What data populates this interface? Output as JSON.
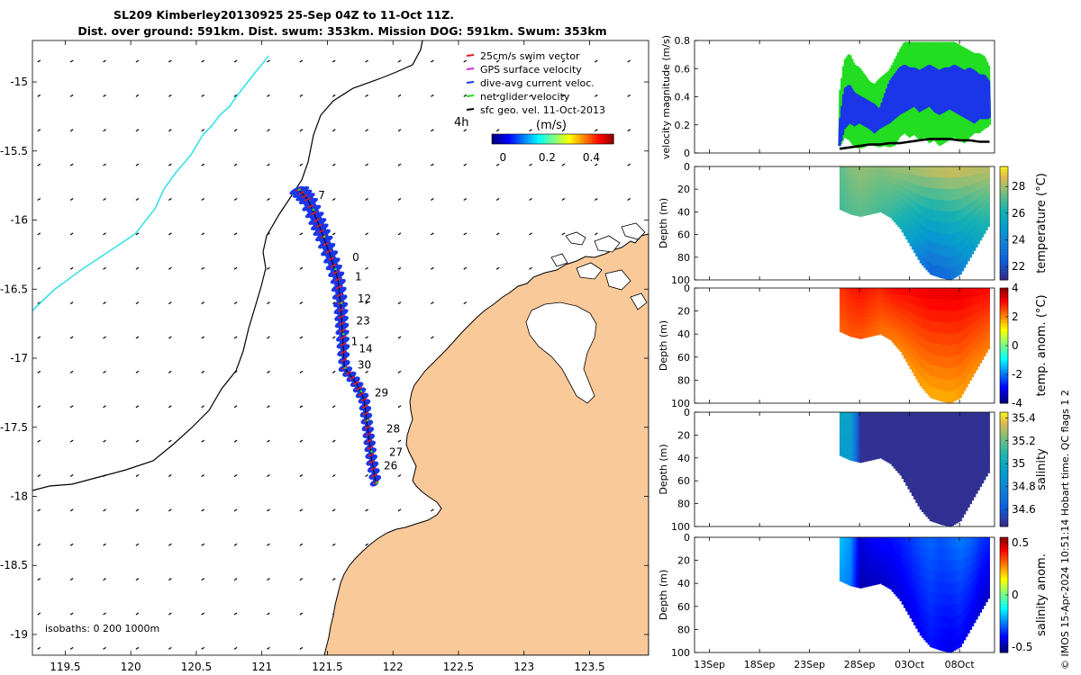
{
  "title": {
    "line1": "SL209 Kimberley20130925 25-Sep 04Z to 11-Oct 11Z.",
    "line2": "Dist. over ground: 591km. Dist. swum: 353km. Mission DOG: 591km. Swum: 353km"
  },
  "footnote": "© IMOS 15-Apr-2024 10:51:14 Hobart time. QC flags 1  2",
  "colors": {
    "land": "#f9c99a",
    "track_blue": "#1a36e8",
    "swim_red": "#e41a1c",
    "net_green": "#22dd22",
    "coast": "#000000",
    "isobath_cyan": "#38e0e8"
  },
  "chart_data": [
    {
      "type": "map",
      "name": "glider track map",
      "xlim": [
        119.25,
        123.95
      ],
      "ylim": [
        -19.15,
        -14.7
      ],
      "xticks": [
        "119.5",
        "120",
        "120.5",
        "121",
        "121.5",
        "122",
        "122.5",
        "123",
        "123.5"
      ],
      "xtick_values": [
        119.5,
        120,
        120.5,
        121,
        121.5,
        122,
        122.5,
        123,
        123.5
      ],
      "yticks": [
        "-15",
        "-15.5",
        "-16",
        "-16.5",
        "-17",
        "-17.5",
        "-18",
        "-18.5",
        "-19"
      ],
      "ytick_values": [
        -15,
        -15.5,
        -16,
        -16.5,
        -17,
        -17.5,
        -18,
        -18.5,
        -19
      ],
      "legend": {
        "items": [
          {
            "label": "25cm/s swim vector",
            "color": "#e41a1c"
          },
          {
            "label": "GPS surface velocity",
            "color": "#cc33cc"
          },
          {
            "label": "dive-avg current veloc.",
            "color": "#1a36e8"
          },
          {
            "label": "net glider velocity",
            "color": "#22dd22"
          },
          {
            "label": "sfc geo. vel. 11-Oct-2013",
            "color": "#000000"
          }
        ],
        "note": "4h"
      },
      "colorbar": {
        "label": "(m/s)",
        "ticks": [
          "0",
          "0.2",
          "0.4"
        ],
        "tick_values": [
          0,
          0.2,
          0.4
        ],
        "range": [
          -0.05,
          0.5
        ]
      },
      "isobaths_label": "isobaths: 0   200  1000m",
      "track": [
        [
          121.28,
          -15.78
        ],
        [
          121.35,
          -15.85
        ],
        [
          121.42,
          -16.0
        ],
        [
          121.47,
          -16.12
        ],
        [
          121.53,
          -16.28
        ],
        [
          121.58,
          -16.43
        ],
        [
          121.6,
          -16.6
        ],
        [
          121.61,
          -16.75
        ],
        [
          121.62,
          -16.9
        ],
        [
          121.63,
          -17.07
        ],
        [
          121.72,
          -17.18
        ],
        [
          121.78,
          -17.3
        ],
        [
          121.8,
          -17.45
        ],
        [
          121.82,
          -17.6
        ],
        [
          121.84,
          -17.75
        ],
        [
          121.87,
          -17.9
        ]
      ],
      "day_labels": [
        {
          "text": "7",
          "lon": 121.43,
          "lat": -15.82
        },
        {
          "text": "0",
          "lon": 121.69,
          "lat": -16.27
        },
        {
          "text": "1",
          "lon": 121.71,
          "lat": -16.41
        },
        {
          "text": "12",
          "lon": 121.73,
          "lat": -16.57
        },
        {
          "text": "23",
          "lon": 121.72,
          "lat": -16.73
        },
        {
          "text": "1",
          "lon": 121.68,
          "lat": -16.88
        },
        {
          "text": "14",
          "lon": 121.74,
          "lat": -16.93
        },
        {
          "text": "30",
          "lon": 121.73,
          "lat": -17.05
        },
        {
          "text": "29",
          "lon": 121.86,
          "lat": -17.25
        },
        {
          "text": "28",
          "lon": 121.95,
          "lat": -17.51
        },
        {
          "text": "27",
          "lon": 121.97,
          "lat": -17.68
        },
        {
          "text": "26",
          "lon": 121.93,
          "lat": -17.78
        }
      ]
    },
    {
      "type": "line",
      "name": "velocity time series",
      "ylabel": "velocity magnitude (m/s)",
      "ylim": [
        0,
        0.8
      ],
      "yticks": [
        "0",
        "0.2",
        "0.4",
        "0.6",
        "0.8"
      ],
      "ytick_values": [
        0,
        0.2,
        0.4,
        0.6,
        0.8
      ],
      "xlim": [
        11.5,
        41.5
      ],
      "xticks": [
        "13Sep",
        "18Sep",
        "23Sep",
        "28Sep",
        "03Oct",
        "08Oct"
      ],
      "xtick_values": [
        13,
        18,
        23,
        28,
        33,
        38
      ],
      "series": [
        {
          "name": "net glider velocity",
          "color": "#22dd22",
          "x": [
            26,
            26.5,
            27,
            27.5,
            28,
            28.5,
            29,
            29.5,
            30,
            30.5,
            31,
            31.5,
            32,
            32.5,
            33,
            33.5,
            34,
            34.5,
            35,
            35.5,
            36,
            36.5,
            37,
            37.5,
            38,
            38.5,
            39,
            39.5,
            40,
            40.5,
            41
          ],
          "high": [
            0.4,
            0.65,
            0.7,
            0.62,
            0.6,
            0.55,
            0.5,
            0.48,
            0.52,
            0.55,
            0.58,
            0.65,
            0.72,
            0.78,
            0.78,
            0.78,
            0.78,
            0.78,
            0.78,
            0.78,
            0.78,
            0.78,
            0.78,
            0.78,
            0.76,
            0.74,
            0.72,
            0.7,
            0.7,
            0.68,
            0.6
          ],
          "low": [
            0.05,
            0.12,
            0.1,
            0.05,
            0.04,
            0.05,
            0.08,
            0.06,
            0.05,
            0.06,
            0.05,
            0.06,
            0.12,
            0.15,
            0.12,
            0.14,
            0.1,
            0.12,
            0.08,
            0.1,
            0.06,
            0.08,
            0.1,
            0.12,
            0.1,
            0.08,
            0.12,
            0.15,
            0.15,
            0.18,
            0.2
          ]
        },
        {
          "name": "dive-avg current veloc.",
          "color": "#1a36e8",
          "x": [
            26,
            26.5,
            27,
            27.5,
            28,
            28.5,
            29,
            29.5,
            30,
            30.5,
            31,
            31.5,
            32,
            32.5,
            33,
            33.5,
            34,
            34.5,
            35,
            35.5,
            36,
            36.5,
            37,
            37.5,
            38,
            38.5,
            39,
            39.5,
            40,
            40.5,
            41
          ],
          "high": [
            0.2,
            0.45,
            0.48,
            0.42,
            0.4,
            0.38,
            0.36,
            0.34,
            0.3,
            0.4,
            0.5,
            0.55,
            0.6,
            0.62,
            0.6,
            0.6,
            0.58,
            0.6,
            0.62,
            0.6,
            0.58,
            0.6,
            0.6,
            0.62,
            0.6,
            0.58,
            0.6,
            0.58,
            0.55,
            0.55,
            0.5
          ],
          "low": [
            0.05,
            0.18,
            0.22,
            0.2,
            0.22,
            0.2,
            0.18,
            0.15,
            0.18,
            0.2,
            0.22,
            0.25,
            0.28,
            0.3,
            0.32,
            0.34,
            0.3,
            0.32,
            0.34,
            0.3,
            0.28,
            0.3,
            0.32,
            0.3,
            0.28,
            0.26,
            0.24,
            0.22,
            0.25,
            0.25,
            0.25
          ]
        },
        {
          "name": "surface geostrophic",
          "color": "#000000",
          "x": [
            26,
            27,
            28,
            29,
            30,
            31,
            32,
            33,
            34,
            35,
            36,
            37,
            38,
            39,
            40,
            41
          ],
          "y": [
            0.03,
            0.04,
            0.05,
            0.06,
            0.06,
            0.07,
            0.07,
            0.08,
            0.09,
            0.1,
            0.1,
            0.1,
            0.09,
            0.09,
            0.08,
            0.08
          ]
        }
      ]
    },
    {
      "type": "heatmap",
      "name": "temperature section",
      "ylabel": "Depth (m)",
      "clabel": "temperature (°C)",
      "ylim": [
        100,
        0
      ],
      "yticks": [
        "0",
        "20",
        "40",
        "60",
        "80",
        "100"
      ],
      "ytick_values": [
        0,
        20,
        40,
        60,
        80,
        100
      ],
      "clim": [
        21,
        29.5
      ],
      "cticks": [
        "22",
        "24",
        "26",
        "28"
      ],
      "ctick_values": [
        22,
        24,
        26,
        28
      ],
      "xlim": [
        11.5,
        41.5
      ],
      "xticks": [
        "13Sep",
        "18Sep",
        "23Sep",
        "28Sep",
        "03Oct",
        "08Oct"
      ],
      "xtick_values": [
        13,
        18,
        23,
        28,
        33,
        38
      ],
      "profile_days": [
        26,
        27,
        28,
        29,
        30,
        31,
        32,
        33,
        34,
        35,
        36,
        37,
        38,
        39,
        40,
        41
      ],
      "max_depth_m": [
        38,
        42,
        44,
        42,
        40,
        45,
        55,
        70,
        85,
        95,
        98,
        100,
        95,
        80,
        65,
        50
      ],
      "surface_values": [
        27.2,
        27.6,
        27.8,
        27.7,
        27.6,
        27.8,
        27.9,
        28.0,
        28.2,
        28.4,
        28.5,
        28.6,
        28.5,
        28.4,
        28.3,
        28.3
      ],
      "bottom_values": [
        26.8,
        27.0,
        27.1,
        27.0,
        26.8,
        26.5,
        25.8,
        24.8,
        23.5,
        22.5,
        22.6,
        22.8,
        23.5,
        24.5,
        25.5,
        26.2
      ]
    },
    {
      "type": "heatmap",
      "name": "temperature anomaly section",
      "ylabel": "Depth (m)",
      "clabel": "temp. anom. (°C)",
      "ylim": [
        100,
        0
      ],
      "yticks": [
        "0",
        "20",
        "40",
        "60",
        "80",
        "100"
      ],
      "ytick_values": [
        0,
        20,
        40,
        60,
        80,
        100
      ],
      "clim": [
        -4,
        4
      ],
      "cticks": [
        "4",
        "2",
        "0",
        "-2",
        "-4"
      ],
      "ctick_values": [
        4,
        2,
        0,
        -2,
        -4
      ],
      "xlim": [
        11.5,
        41.5
      ],
      "xticks": [
        "13Sep",
        "18Sep",
        "23Sep",
        "28Sep",
        "03Oct",
        "08Oct"
      ],
      "xtick_values": [
        13,
        18,
        23,
        28,
        33,
        38
      ],
      "profile_days": [
        26,
        27,
        28,
        29,
        30,
        31,
        32,
        33,
        34,
        35,
        36,
        37,
        38,
        39,
        40,
        41
      ],
      "max_depth_m": [
        38,
        42,
        44,
        42,
        40,
        45,
        55,
        70,
        85,
        95,
        98,
        100,
        95,
        80,
        65,
        50
      ],
      "surface_values": [
        2.6,
        2.8,
        2.9,
        2.8,
        2.7,
        2.9,
        3.0,
        3.0,
        3.1,
        3.2,
        3.2,
        3.2,
        3.2,
        3.1,
        3.0,
        3.0
      ],
      "bottom_values": [
        2.2,
        2.3,
        2.3,
        2.2,
        2.1,
        2.0,
        1.9,
        1.8,
        1.7,
        1.6,
        1.6,
        1.6,
        1.7,
        1.8,
        1.9,
        2.0
      ]
    },
    {
      "type": "heatmap",
      "name": "salinity section",
      "ylabel": "Depth (m)",
      "clabel": "salinity",
      "ylim": [
        100,
        0
      ],
      "yticks": [
        "0",
        "20",
        "40",
        "60",
        "80",
        "100"
      ],
      "ytick_values": [
        0,
        20,
        40,
        60,
        80,
        100
      ],
      "clim": [
        34.45,
        35.45
      ],
      "cticks": [
        "35.4",
        "35.2",
        "35",
        "34.8",
        "34.6"
      ],
      "ctick_values": [
        35.4,
        35.2,
        35,
        34.8,
        34.6
      ],
      "xlim": [
        11.5,
        41.5
      ],
      "xticks": [
        "13Sep",
        "18Sep",
        "23Sep",
        "28Sep",
        "03Oct",
        "08Oct"
      ],
      "xtick_values": [
        13,
        18,
        23,
        28,
        33,
        38
      ],
      "profile_days": [
        26,
        27,
        28,
        29,
        30,
        31,
        32,
        33,
        34,
        35,
        36,
        37,
        38,
        39,
        40,
        41
      ],
      "max_depth_m": [
        38,
        42,
        44,
        42,
        40,
        45,
        55,
        70,
        85,
        95,
        98,
        100,
        95,
        80,
        65,
        50
      ],
      "surface_values": [
        34.95,
        34.95,
        34.47,
        34.47,
        34.47,
        34.47,
        34.47,
        34.47,
        34.47,
        34.47,
        34.47,
        34.47,
        34.47,
        34.47,
        34.47,
        34.47
      ],
      "bottom_values": [
        34.9,
        34.9,
        34.47,
        34.47,
        34.47,
        34.47,
        34.47,
        34.47,
        34.47,
        34.47,
        34.47,
        34.47,
        34.47,
        34.47,
        34.47,
        34.47
      ]
    },
    {
      "type": "heatmap",
      "name": "salinity anomaly section",
      "ylabel": "Depth (m)",
      "clabel": "salinity anom.",
      "ylim": [
        100,
        0
      ],
      "yticks": [
        "0",
        "20",
        "40",
        "60",
        "80",
        "100"
      ],
      "ytick_values": [
        0,
        20,
        40,
        60,
        80,
        100
      ],
      "clim": [
        -0.55,
        0.55
      ],
      "cticks": [
        "0.5",
        "0",
        "-0.5"
      ],
      "ctick_values": [
        0.5,
        0,
        -0.5
      ],
      "xlim": [
        11.5,
        41.5
      ],
      "xticks": [
        "13Sep",
        "18Sep",
        "23Sep",
        "28Sep",
        "03Oct",
        "08Oct"
      ],
      "xtick_values": [
        13,
        18,
        23,
        28,
        33,
        38
      ],
      "profile_days": [
        26,
        27,
        28,
        29,
        30,
        31,
        32,
        33,
        34,
        35,
        36,
        37,
        38,
        39,
        40,
        41
      ],
      "max_depth_m": [
        38,
        42,
        44,
        42,
        40,
        45,
        55,
        70,
        85,
        95,
        98,
        100,
        95,
        80,
        65,
        50
      ],
      "surface_values": [
        -0.2,
        -0.25,
        -0.45,
        -0.42,
        -0.4,
        -0.4,
        -0.38,
        -0.35,
        -0.32,
        -0.3,
        -0.32,
        -0.3,
        -0.28,
        -0.3,
        -0.35,
        -0.38
      ],
      "bottom_values": [
        -0.25,
        -0.28,
        -0.5,
        -0.48,
        -0.48,
        -0.46,
        -0.45,
        -0.44,
        -0.42,
        -0.4,
        -0.42,
        -0.44,
        -0.42,
        -0.44,
        -0.46,
        -0.48
      ]
    }
  ]
}
